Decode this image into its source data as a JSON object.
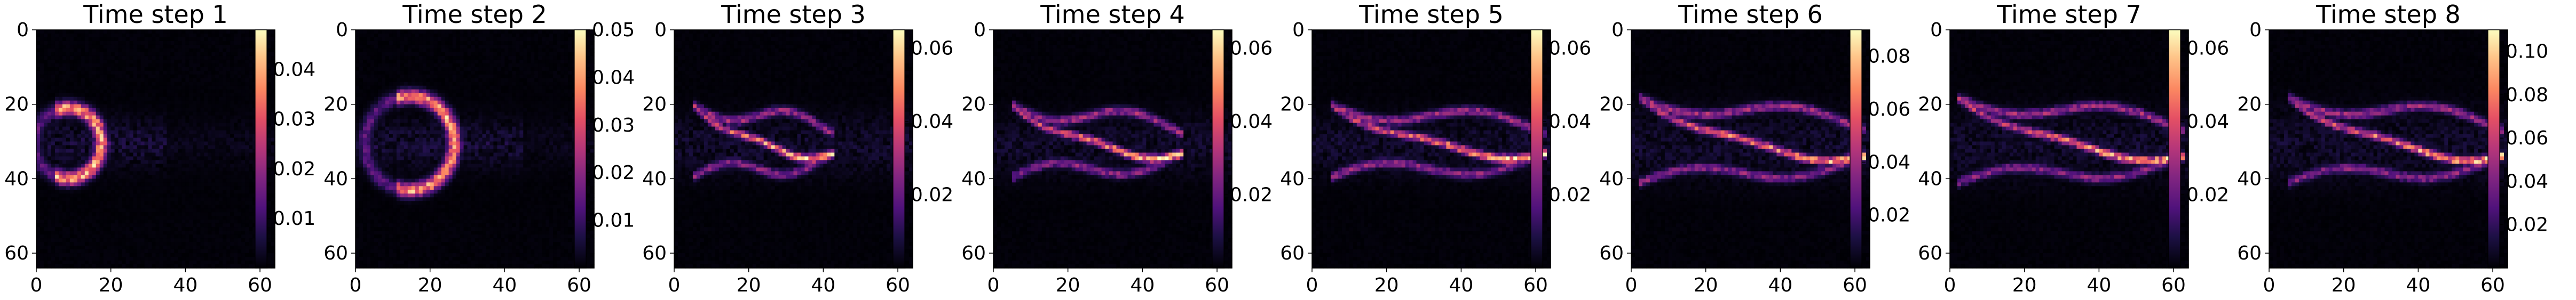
{
  "figure": {
    "colormap": "magma",
    "background": "#ffffff"
  },
  "chart_data": [
    {
      "type": "heatmap",
      "title": "Time step 1",
      "grid": [
        64,
        64
      ],
      "xticks": [
        0,
        20,
        40,
        60
      ],
      "yticks": [
        0,
        20,
        40,
        60
      ],
      "xlim": [
        0,
        64
      ],
      "ylim": [
        64,
        0
      ],
      "grid_lines": false,
      "colorbar": {
        "range": [
          0.0,
          0.048
        ],
        "ticks": [
          0.01,
          0.02,
          0.03,
          0.04
        ]
      },
      "feature": {
        "type": "arc",
        "center": [
          8,
          30
        ],
        "radius": 9,
        "x_span": [
          0,
          20
        ],
        "y_span": [
          20,
          41
        ]
      }
    },
    {
      "type": "heatmap",
      "title": "Time step 2",
      "grid": [
        64,
        64
      ],
      "xticks": [
        0,
        20,
        40,
        60
      ],
      "yticks": [
        0,
        20,
        40,
        60
      ],
      "xlim": [
        0,
        64
      ],
      "ylim": [
        64,
        0
      ],
      "grid_lines": false,
      "colorbar": {
        "range": [
          0.0,
          0.05
        ],
        "ticks": [
          0.01,
          0.02,
          0.03,
          0.04,
          0.05
        ]
      },
      "feature": {
        "type": "arc",
        "center": [
          14,
          30
        ],
        "radius": 12,
        "x_span": [
          2,
          30
        ],
        "y_span": [
          20,
          41
        ]
      }
    },
    {
      "type": "heatmap",
      "title": "Time step 3",
      "grid": [
        64,
        64
      ],
      "xticks": [
        0,
        20,
        40,
        60
      ],
      "yticks": [
        0,
        20,
        40,
        60
      ],
      "xlim": [
        0,
        64
      ],
      "ylim": [
        64,
        0
      ],
      "grid_lines": false,
      "colorbar": {
        "range": [
          0.0,
          0.065
        ],
        "ticks": [
          0.02,
          0.04,
          0.06
        ]
      },
      "feature": {
        "type": "streak",
        "x_span": [
          5,
          42
        ],
        "y_span": [
          20,
          41
        ]
      }
    },
    {
      "type": "heatmap",
      "title": "Time step 4",
      "grid": [
        64,
        64
      ],
      "xticks": [
        0,
        20,
        40,
        60
      ],
      "yticks": [
        0,
        20,
        40,
        60
      ],
      "xlim": [
        0,
        64
      ],
      "ylim": [
        64,
        0
      ],
      "grid_lines": false,
      "colorbar": {
        "range": [
          0.0,
          0.065
        ],
        "ticks": [
          0.02,
          0.04,
          0.06
        ]
      },
      "feature": {
        "type": "streak",
        "x_span": [
          5,
          50
        ],
        "y_span": [
          20,
          41
        ]
      }
    },
    {
      "type": "heatmap",
      "title": "Time step 5",
      "grid": [
        64,
        64
      ],
      "xticks": [
        0,
        20,
        40,
        60
      ],
      "yticks": [
        0,
        20,
        40,
        60
      ],
      "xlim": [
        0,
        64
      ],
      "ylim": [
        64,
        0
      ],
      "grid_lines": false,
      "colorbar": {
        "range": [
          0.0,
          0.065
        ],
        "ticks": [
          0.02,
          0.04,
          0.06
        ]
      },
      "feature": {
        "type": "streak",
        "x_span": [
          5,
          62
        ],
        "y_span": [
          20,
          41
        ]
      }
    },
    {
      "type": "heatmap",
      "title": "Time step 6",
      "grid": [
        64,
        64
      ],
      "xticks": [
        0,
        20,
        40,
        60
      ],
      "yticks": [
        0,
        20,
        40,
        60
      ],
      "xlim": [
        0,
        64
      ],
      "ylim": [
        64,
        0
      ],
      "grid_lines": false,
      "colorbar": {
        "range": [
          0.0,
          0.09
        ],
        "ticks": [
          0.02,
          0.04,
          0.06,
          0.08
        ]
      },
      "feature": {
        "type": "streak",
        "x_span": [
          2,
          62
        ],
        "y_span": [
          18,
          43
        ]
      }
    },
    {
      "type": "heatmap",
      "title": "Time step 7",
      "grid": [
        64,
        64
      ],
      "xticks": [
        0,
        20,
        40,
        60
      ],
      "yticks": [
        0,
        20,
        40,
        60
      ],
      "xlim": [
        0,
        64
      ],
      "ylim": [
        64,
        0
      ],
      "grid_lines": false,
      "colorbar": {
        "range": [
          0.0,
          0.065
        ],
        "ticks": [
          0.02,
          0.04,
          0.06
        ]
      },
      "feature": {
        "type": "streak",
        "x_span": [
          2,
          62
        ],
        "y_span": [
          18,
          43
        ]
      }
    },
    {
      "type": "heatmap",
      "title": "Time step 8",
      "grid": [
        64,
        64
      ],
      "xticks": [
        0,
        20,
        40,
        60
      ],
      "yticks": [
        0,
        20,
        40,
        60
      ],
      "xlim": [
        0,
        64
      ],
      "ylim": [
        64,
        0
      ],
      "grid_lines": false,
      "colorbar": {
        "range": [
          0.0,
          0.11
        ],
        "ticks": [
          0.02,
          0.04,
          0.06,
          0.08,
          0.1
        ]
      },
      "feature": {
        "type": "streak",
        "x_span": [
          5,
          62
        ],
        "y_span": [
          18,
          43
        ]
      }
    }
  ]
}
